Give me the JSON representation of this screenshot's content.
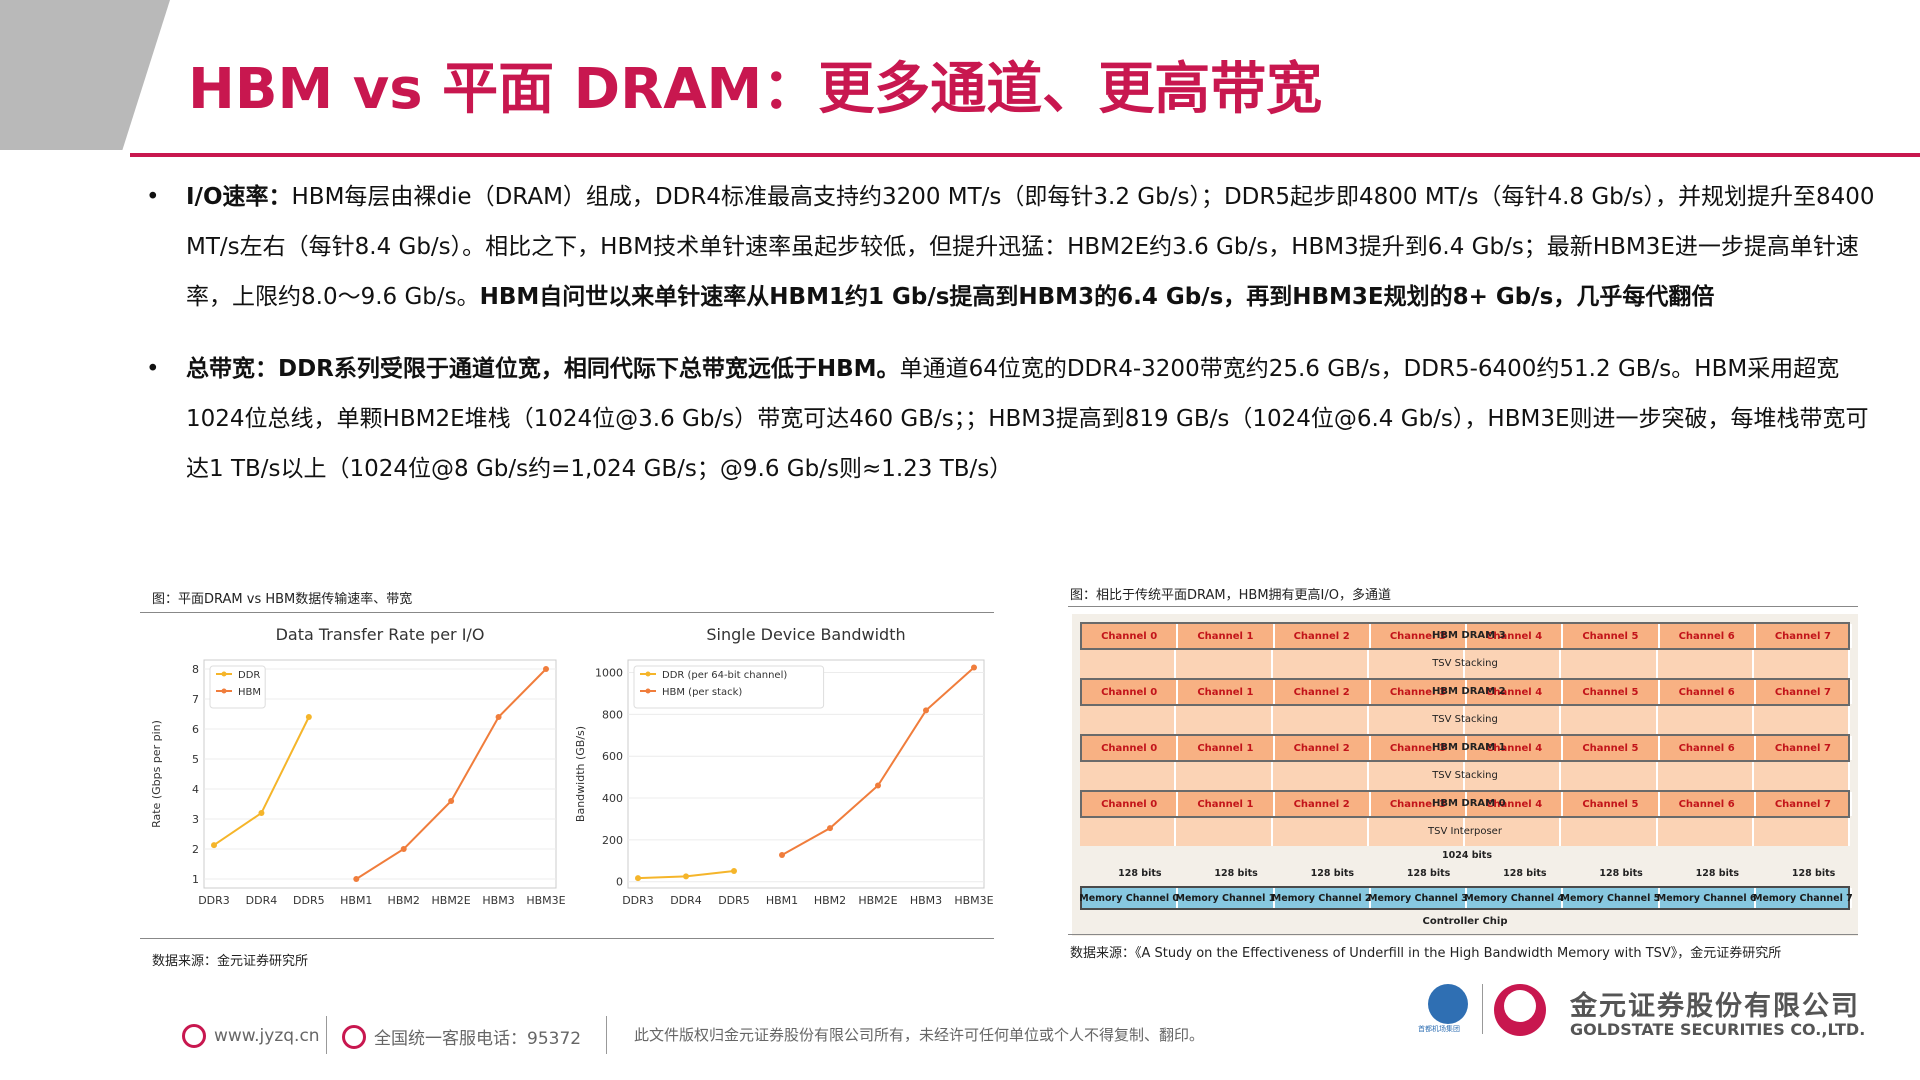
{
  "header": {
    "title": "HBM vs 平面 DRAM：更多通道、更高带宽"
  },
  "bullets": [
    {
      "bold_lead": "I/O速率：",
      "text": "HBM每层由裸die（DRAM）组成，DDR4标准最高支持约3200 MT/s（即每针3.2 Gb/s）；DDR5起步即4800 MT/s（每针4.8 Gb/s），并规划提升至8400 MT/s左右（每针8.4 Gb/s）。相比之下，HBM技术单针速率虽起步较低，但提升迅猛：HBM2E约3.6 Gb/s，HBM3提升到6.4 Gb/s；最新HBM3E进一步提高单针速率，上限约8.0～9.6 Gb/s。",
      "bold_tail": "HBM自问世以来单针速率从HBM1约1 Gb/s提高到HBM3的6.4 Gb/s，再到HBM3E规划的8+ Gb/s，几乎每代翻倍"
    },
    {
      "bold_lead": "总带宽：DDR系列受限于通道位宽，相同代际下总带宽远低于HBM。",
      "text": "单通道64位宽的DDR4-3200带宽约25.6 GB/s，DDR5-6400约51.2 GB/s。HBM采用超宽1024位总线，单颗HBM2E堆栈（1024位@3.6 Gb/s）带宽可达460 GB/s；；HBM3提高到819 GB/s（1024位@6.4 Gb/s），HBM3E则进一步突破，每堆栈带宽可达1 TB/s以上（1024位@8 Gb/s约=1,024 GB/s；@9.6 Gb/s则≈1.23 TB/s）",
      "bold_tail": ""
    }
  ],
  "figure_left": {
    "caption": "图：平面DRAM vs HBM数据传输速率、带宽",
    "source": "数据来源：金元证券研究所"
  },
  "figure_right": {
    "caption": "图：相比于传统平面DRAM，HBM拥有更高I/O，多通道",
    "source": "数据来源：《A Study on the Effectiveness of Underfill in the High Bandwidth Memory with TSV》，金元证券研究所"
  },
  "chart_data": [
    {
      "type": "line",
      "title": "Data Transfer Rate per I/O",
      "ylabel": "Rate (Gbps per pin)",
      "xlabel": "",
      "categories": [
        "DDR3",
        "DDR4",
        "DDR5",
        "HBM1",
        "HBM2",
        "HBM2E",
        "HBM3",
        "HBM3E"
      ],
      "ylim": [
        0.7,
        8.3
      ],
      "yticks": [
        1,
        2,
        3,
        4,
        5,
        6,
        7,
        8
      ],
      "legend": "top-left",
      "series": [
        {
          "name": "DDR",
          "color": "#f5b52a",
          "values": [
            2.13,
            3.2,
            6.4,
            null,
            null,
            null,
            null,
            null
          ]
        },
        {
          "name": "HBM",
          "color": "#f07d3c",
          "values": [
            null,
            null,
            null,
            1.0,
            2.0,
            3.6,
            6.4,
            8.0
          ]
        }
      ]
    },
    {
      "type": "line",
      "title": "Single Device Bandwidth",
      "ylabel": "Bandwidth (GB/s)",
      "xlabel": "",
      "categories": [
        "DDR3",
        "DDR4",
        "DDR5",
        "HBM1",
        "HBM2",
        "HBM2E",
        "HBM3",
        "HBM3E"
      ],
      "ylim": [
        -30,
        1060
      ],
      "yticks": [
        0,
        200,
        400,
        600,
        800,
        1000
      ],
      "legend": "top-left",
      "series": [
        {
          "name": "DDR (per 64-bit channel)",
          "color": "#f5b52a",
          "values": [
            17,
            25.6,
            51.2,
            null,
            null,
            null,
            null,
            null
          ]
        },
        {
          "name": "HBM (per stack)",
          "color": "#f07d3c",
          "values": [
            null,
            null,
            null,
            128,
            256,
            460,
            819,
            1024
          ]
        }
      ]
    }
  ],
  "diagram": {
    "channels": [
      "Channel 0",
      "Channel 1",
      "Channel 2",
      "Channel 3",
      "Channel 4",
      "Channel 5",
      "Channel 6",
      "Channel 7"
    ],
    "layers": [
      "HBM DRAM 3",
      "HBM DRAM 2",
      "HBM DRAM 1",
      "HBM DRAM 0"
    ],
    "tsv_stacking": "TSV Stacking",
    "tsv_interposer": "TSV Interposer",
    "bits_label": "128 bits",
    "total_bits": "1024 bits",
    "memory_channels": [
      "Memory Channel 0",
      "Memory Channel 1",
      "Memory Channel 2",
      "Memory Channel 3",
      "Memory Channel 4",
      "Memory Channel 5",
      "Memory Channel 6",
      "Memory Channel 7"
    ],
    "controller": "Controller Chip"
  },
  "footer": {
    "website": "www.jyzq.cn",
    "hotline": "全国统一客服电话：95372",
    "copyright": "此文件版权归金元证券股份有限公司所有，未经许可任何单位或个人不得复制、翻印。",
    "logo_a_text": "首都机场集团",
    "company_cn": "金元证券股份有限公司",
    "company_en": "GOLDSTATE SECURITIES CO.,LTD."
  },
  "colors": {
    "accent": "#c8174f",
    "ddr": "#f5b52a",
    "hbm": "#f07d3c"
  }
}
